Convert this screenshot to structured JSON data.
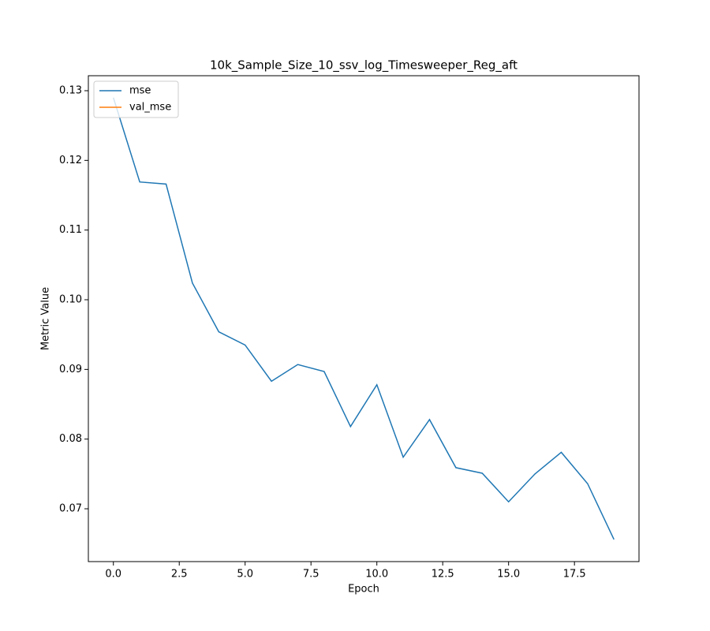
{
  "chart_data": {
    "type": "line",
    "title": "10k_Sample_Size_10_ssv_log_Timesweeper_Reg_aft",
    "xlabel": "Epoch",
    "ylabel": "Metric Value",
    "x": [
      0,
      1,
      2,
      3,
      4,
      5,
      6,
      7,
      8,
      9,
      10,
      11,
      12,
      13,
      14,
      15,
      16,
      17,
      18,
      19
    ],
    "series": [
      {
        "name": "mse",
        "color": "#1f77b4",
        "values": [
          0.129,
          0.1169,
          0.1166,
          0.1024,
          0.0954,
          0.0935,
          0.0883,
          0.0907,
          0.0897,
          0.0818,
          0.0878,
          0.0774,
          0.0828,
          0.0759,
          0.0751,
          0.071,
          0.075,
          0.0781,
          0.0736,
          0.0656
        ]
      },
      {
        "name": "val_mse",
        "color": "#ff7f0e",
        "values": [
          null,
          null,
          null,
          null,
          null,
          null,
          null,
          null,
          null,
          null,
          null,
          null,
          null,
          null,
          null,
          null,
          null,
          null,
          null,
          null
        ]
      }
    ],
    "xlim": [
      -0.95,
      19.95
    ],
    "xticks": [
      {
        "value": 0,
        "label": "0.0"
      },
      2.5,
      {
        "value": 5,
        "label": "5.0"
      },
      7.5,
      {
        "value": 10,
        "label": "10.0"
      },
      12.5,
      {
        "value": 15,
        "label": "15.0"
      },
      17.5
    ],
    "ylim": [
      0.06242,
      0.13215
    ],
    "yticks": [
      0.07,
      0.08,
      0.09,
      {
        "value": 0.1,
        "label": "0.10"
      },
      0.11,
      0.12,
      0.13
    ],
    "grid": false,
    "legend": "upper left"
  }
}
